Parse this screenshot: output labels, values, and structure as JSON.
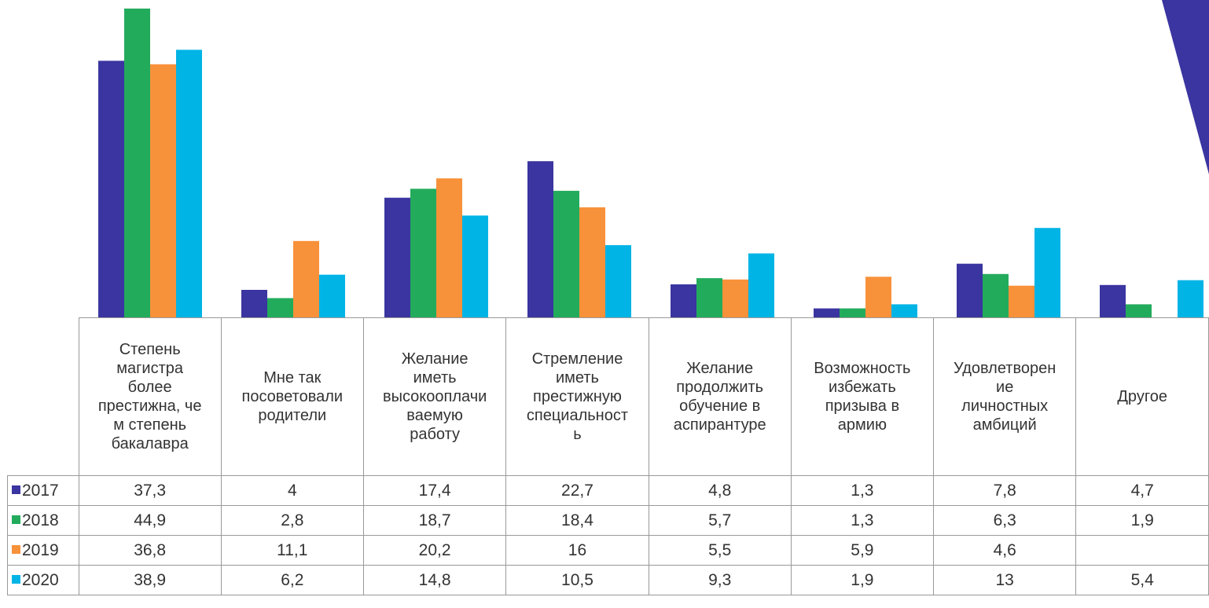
{
  "chart_data": {
    "type": "bar",
    "categories": [
      "Степень\nмагистра\nболее\nпрестижна, че\nм степень\nбакалавра",
      "Мне так\nпосоветовали\nродители",
      "Желание\nиметь\nвысокооплачи\nваемую\nработу",
      "Стремление\nиметь\nпрестижную\nспециальност\nь",
      "Желание\nпродолжить\nобучение в\nаспирантуре",
      "Возможность\nизбежать\nпризыва в\nармию",
      "Удовлетворен\nие\nличностных\nамбиций",
      "Другое"
    ],
    "series": [
      {
        "name": "2017",
        "color": "#3a35a0",
        "values": [
          37.3,
          4,
          17.4,
          22.7,
          4.8,
          1.3,
          7.8,
          4.7
        ],
        "labels": [
          "37,3",
          "4",
          "17,4",
          "22,7",
          "4,8",
          "1,3",
          "7,8",
          "4,7"
        ]
      },
      {
        "name": "2018",
        "color": "#23ab5c",
        "values": [
          44.9,
          2.8,
          18.7,
          18.4,
          5.7,
          1.3,
          6.3,
          1.9
        ],
        "labels": [
          "44,9",
          "2,8",
          "18,7",
          "18,4",
          "5,7",
          "1,3",
          "6,3",
          "1,9"
        ]
      },
      {
        "name": "2019",
        "color": "#f7913a",
        "values": [
          36.8,
          11.1,
          20.2,
          16,
          5.5,
          5.9,
          4.6,
          null
        ],
        "labels": [
          "36,8",
          "11,1",
          "20,2",
          "16",
          "5,5",
          "5,9",
          "4,6",
          ""
        ]
      },
      {
        "name": "2020",
        "color": "#00b4e6",
        "values": [
          38.9,
          6.2,
          14.8,
          10.5,
          9.3,
          1.9,
          13,
          5.4
        ],
        "labels": [
          "38,9",
          "6,2",
          "14,8",
          "10,5",
          "9,3",
          "1,9",
          "13",
          "5,4"
        ]
      }
    ],
    "ylim": [
      0,
      45
    ],
    "grid": false,
    "legend": "data-table",
    "title": "",
    "xlabel": "",
    "ylabel": ""
  },
  "decoration": {
    "color": "#3a35a0"
  }
}
